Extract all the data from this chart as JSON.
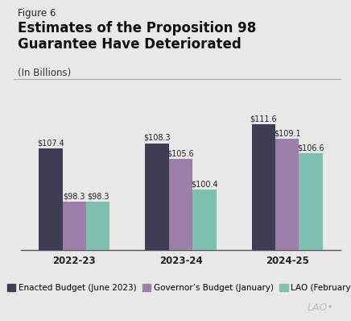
{
  "figure_label": "Figure 6",
  "title": "Estimates of the Proposition 98\nGuarantee Have Deteriorated",
  "subtitle": "(In Billions)",
  "background_color": "#e8e8e8",
  "categories": [
    "2022-23",
    "2023-24",
    "2024-25"
  ],
  "series": {
    "Enacted Budget (June 2023)": [
      107.4,
      108.3,
      111.6
    ],
    "Governor’s Budget (January)": [
      98.3,
      105.6,
      109.1
    ],
    "LAO (February)": [
      98.3,
      100.4,
      106.6
    ]
  },
  "colors": {
    "Enacted Budget (June 2023)": "#3d3d54",
    "Governor’s Budget (January)": "#9b7fa8",
    "LAO (February)": "#7fbfb0"
  },
  "bar_labels": {
    "Enacted Budget (June 2023)": [
      "$107.4",
      "$108.3",
      "$111.6"
    ],
    "Governor’s Budget (January)": [
      "$98.3",
      "$105.6",
      "$109.1"
    ],
    "LAO (February)": [
      "$98.3",
      "$100.4",
      "$106.6"
    ]
  },
  "ylim": [
    90,
    118
  ],
  "title_fontsize": 12,
  "subtitle_fontsize": 8.5,
  "label_fontsize": 7,
  "legend_fontsize": 7.5,
  "tick_fontsize": 8.5,
  "figure_label_fontsize": 8.5,
  "lao_watermark": "LAO•",
  "lao_color": "#bbbbbb"
}
